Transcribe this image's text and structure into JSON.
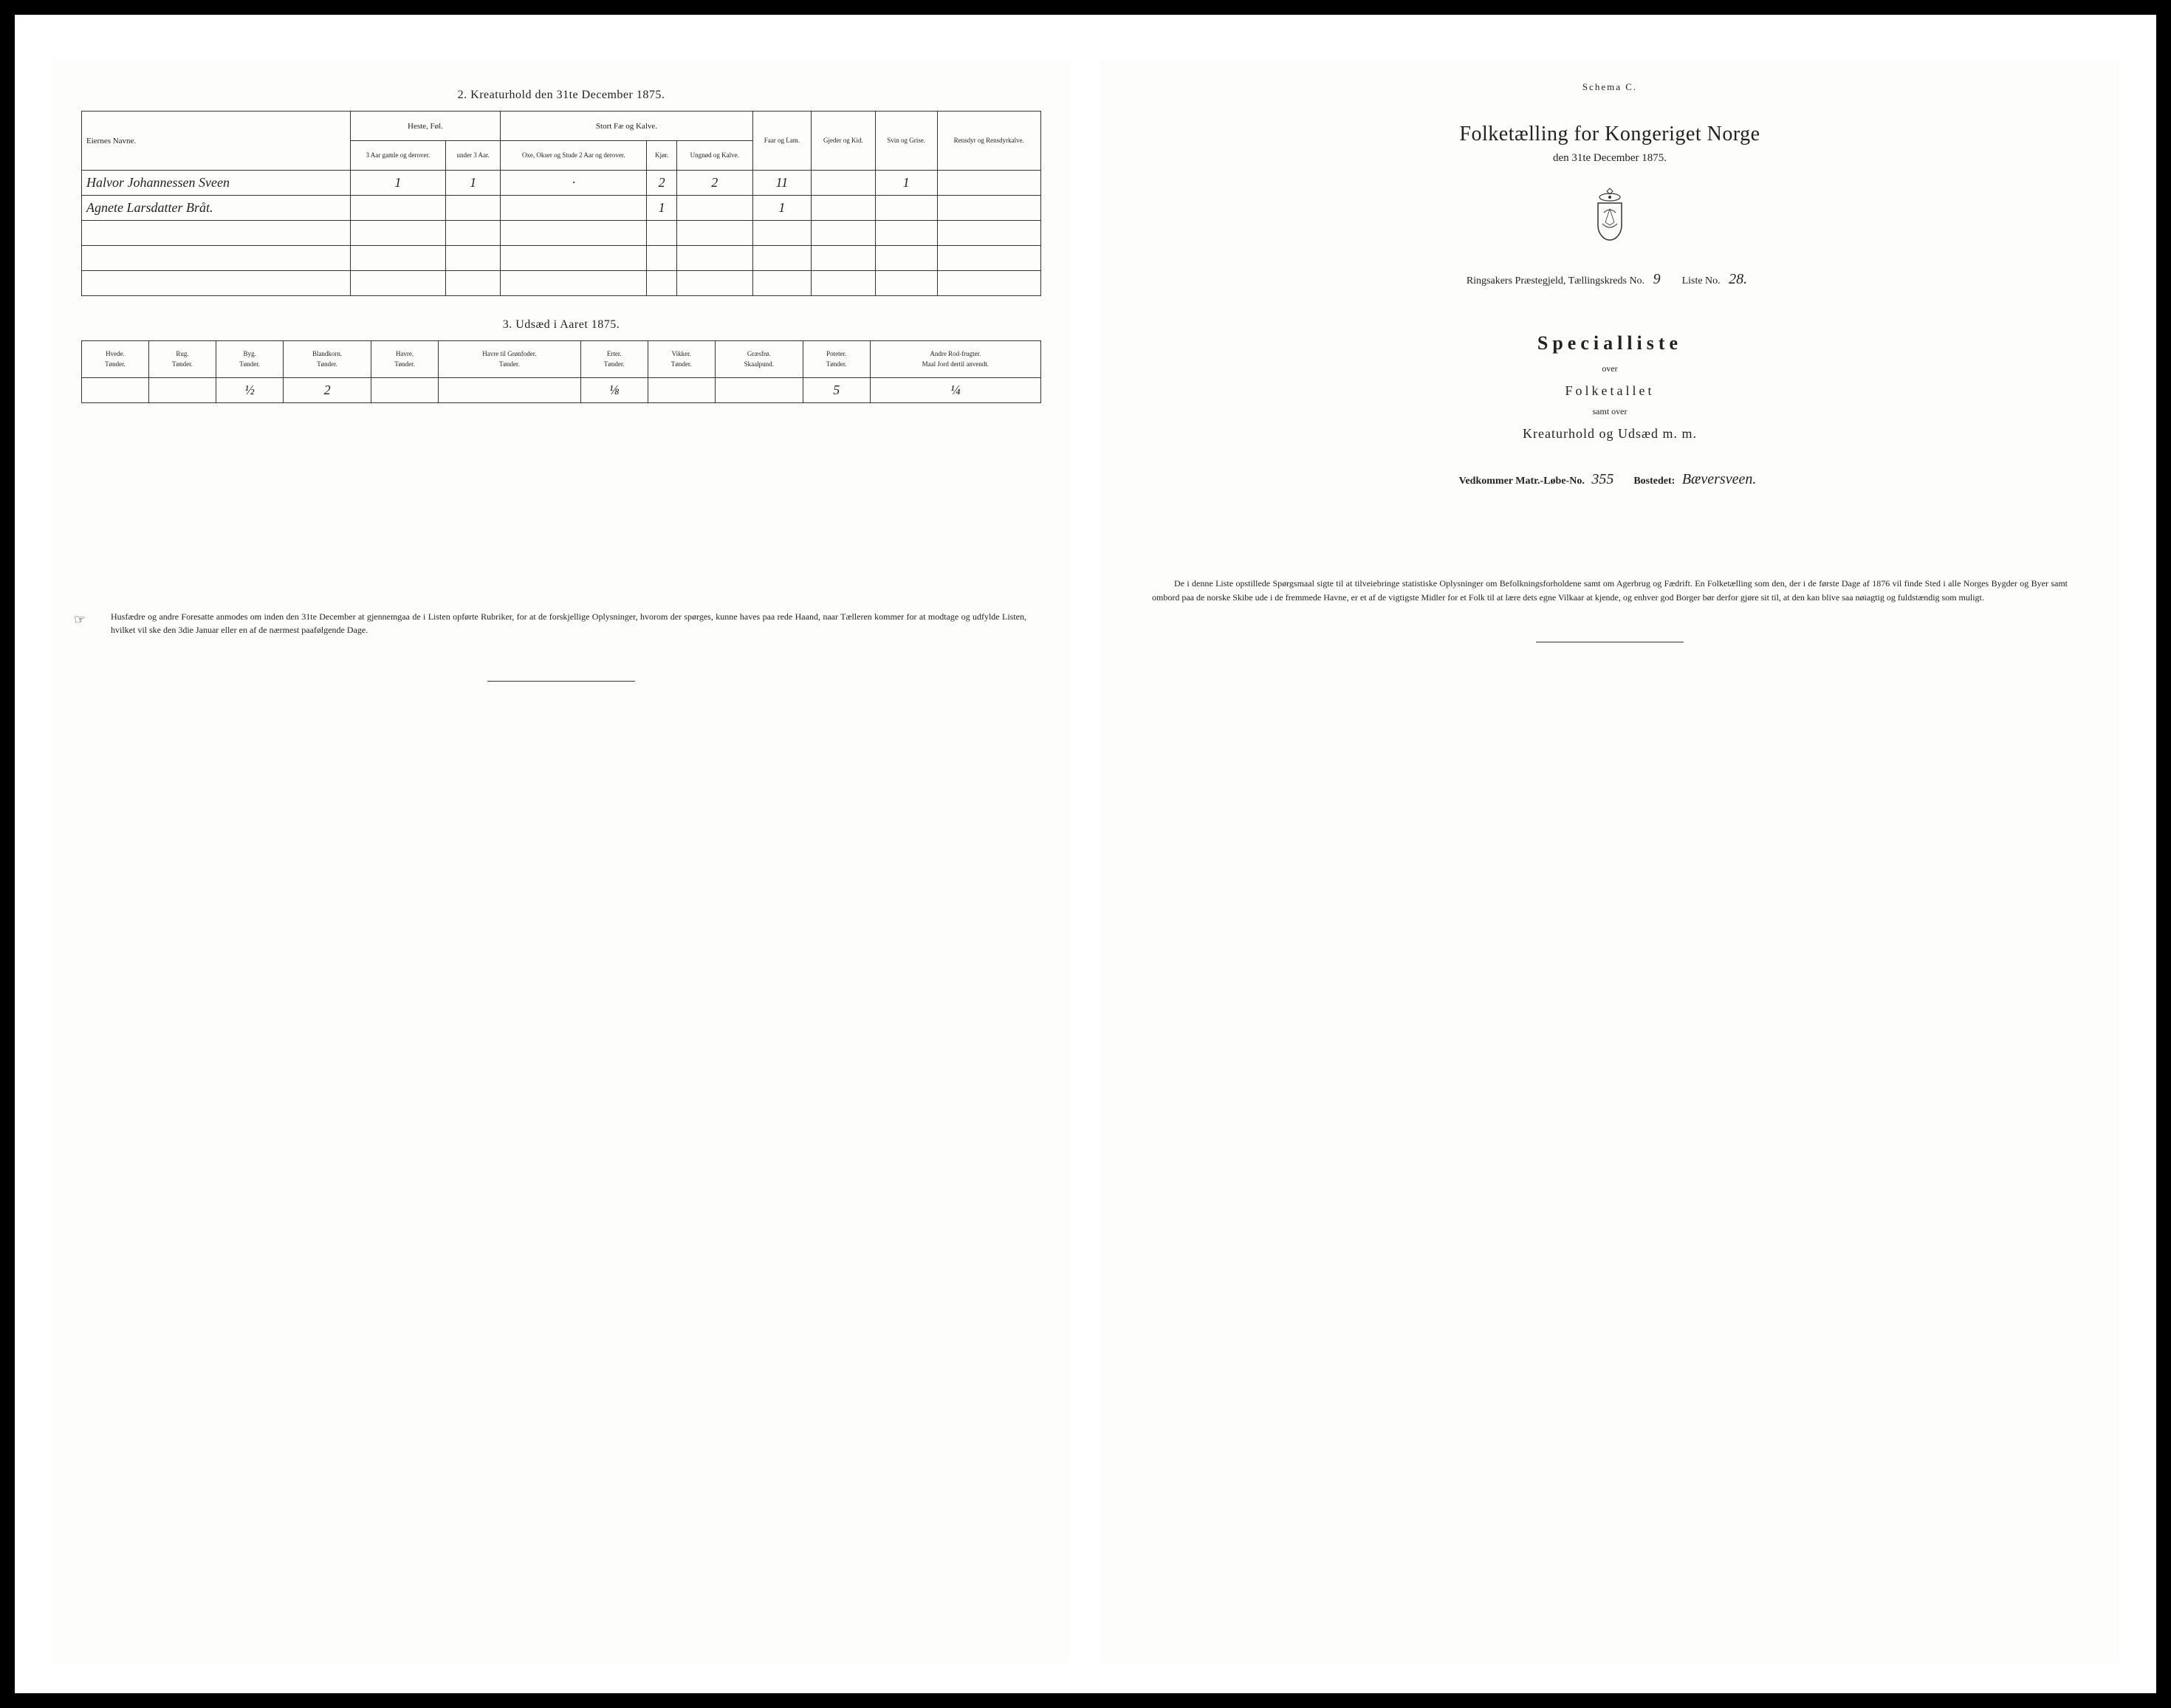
{
  "left": {
    "section2_title": "2.  Kreaturhold den 31te December 1875.",
    "table2": {
      "header_owner": "Eiernes Navne.",
      "group_heste": "Heste, Føl.",
      "group_stort": "Stort Fæ og Kalve.",
      "col_heste_a": "3 Aar gamle og derover.",
      "col_heste_b": "under 3 Aar.",
      "col_stort_a": "Oxe, Okser og Stude 2 Aar og derover.",
      "col_stort_b": "Kjør.",
      "col_stort_c": "Ungnød og Kalve.",
      "col_faar": "Faar og Lam.",
      "col_gjeder": "Gjeder og Kid.",
      "col_svin": "Svin og Grise.",
      "col_rensdyr": "Rensdyr og Rensdyrkalve.",
      "rows": [
        {
          "owner": "Halvor Johannessen Sveen",
          "vals": [
            "1",
            "1",
            "·",
            "2",
            "2",
            "11",
            "",
            "1",
            ""
          ]
        },
        {
          "owner": "Agnete Larsdatter Bråt.",
          "vals": [
            "",
            "",
            "",
            "1",
            "",
            "1",
            "",
            "",
            ""
          ]
        }
      ]
    },
    "section3_title": "3.  Udsæd i Aaret 1875.",
    "table3": {
      "cols": [
        {
          "h": "Hvede.",
          "s": "Tønder."
        },
        {
          "h": "Rug.",
          "s": "Tønder."
        },
        {
          "h": "Byg.",
          "s": "Tønder."
        },
        {
          "h": "Blandkorn.",
          "s": "Tønder."
        },
        {
          "h": "Havre.",
          "s": "Tønder."
        },
        {
          "h": "Havre til Grønfoder.",
          "s": "Tønder."
        },
        {
          "h": "Erter.",
          "s": "Tønder."
        },
        {
          "h": "Vikker.",
          "s": "Tønder."
        },
        {
          "h": "Græsfrø.",
          "s": "Skaalpund."
        },
        {
          "h": "Poteter.",
          "s": "Tønder."
        },
        {
          "h": "Andre Rod-frugter.",
          "s": "Maal Jord dertil anvendt."
        }
      ],
      "row": [
        "",
        "",
        "½",
        "2",
        "",
        "",
        "⅛",
        "",
        "",
        "5",
        "¼"
      ]
    },
    "footnote": "Husfædre og andre Foresatte anmodes om inden den 31te December at gjennemgaa de i Listen opførte Rubriker, for at de forskjellige Oplysninger, hvorom der spørges, kunne haves paa rede Haand, naar Tælleren kommer for at modtage og udfylde Listen, hvilket vil ske den 3die Januar eller en af de nærmest paafølgende Dage."
  },
  "right": {
    "schema": "Schema C.",
    "title": "Folketælling for Kongeriget Norge",
    "date": "den 31te December 1875.",
    "district_prefix": "Ringsakers Præstegjeld, Tællingskreds No.",
    "district_no": "9",
    "liste_label": "Liste No.",
    "liste_no": "28.",
    "specialliste": "Specialliste",
    "over": "over",
    "folketallet": "Folketallet",
    "samt": "samt over",
    "kreatur": "Kreaturhold og Udsæd m. m.",
    "matr_label": "Vedkommer Matr.-Løbe-No.",
    "matr_no": "355",
    "bosted_label": "Bostedet:",
    "bosted": "Bæversveen.",
    "footnote": "De i denne Liste opstillede Spørgsmaal sigte til at tilveiebringe statistiske Oplysninger om Befolkningsforholdene samt om Agerbrug og Fædrift.  En Folketælling som den, der i de første Dage af 1876 vil finde Sted i alle Norges Bygder og Byer samt ombord paa de norske Skibe ude i de fremmede Havne, er et af de vigtigste Midler for et Folk til at lære dets egne Vilkaar at kjende, og enhver god Borger bør derfor gjøre sit til, at den kan blive saa nøiagtig og fuldstændig som muligt."
  },
  "colors": {
    "paper": "#fdfdfb",
    "ink": "#1a1a1a",
    "frame_bg": "#ffffff",
    "outer": "#000000"
  }
}
